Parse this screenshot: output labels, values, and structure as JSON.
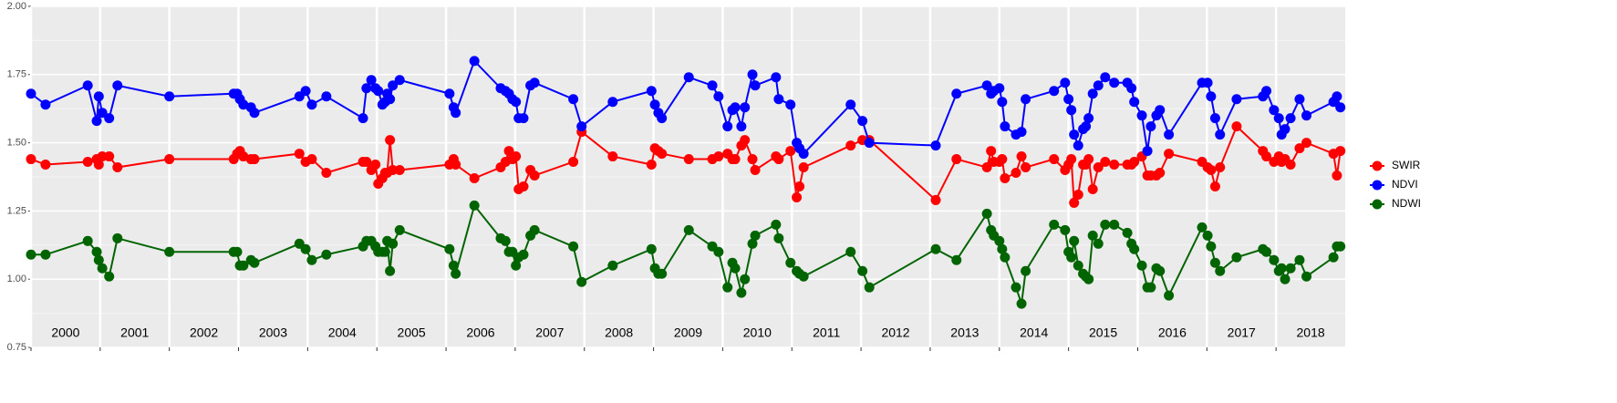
{
  "chart_data": {
    "type": "line",
    "x": [
      2000.0,
      2000.21,
      2000.82,
      2000.95,
      2000.98,
      2001.03,
      2001.13,
      2001.25,
      2002.0,
      2002.93,
      2002.98,
      2003.02,
      2003.07,
      2003.18,
      2003.23,
      2003.88,
      2003.97,
      2004.06,
      2004.27,
      2004.8,
      2004.85,
      2004.92,
      2004.98,
      2005.02,
      2005.08,
      2005.12,
      2005.15,
      2005.19,
      2005.23,
      2005.33,
      2006.05,
      2006.11,
      2006.14,
      2006.41,
      2006.79,
      2006.86,
      2006.91,
      2006.96,
      2007.01,
      2007.05,
      2007.12,
      2007.22,
      2007.28,
      2007.84,
      2007.96,
      2008.41,
      2008.97,
      2009.02,
      2009.07,
      2009.12,
      2009.51,
      2009.85,
      2009.94,
      2010.07,
      2010.14,
      2010.18,
      2010.27,
      2010.32,
      2010.43,
      2010.47,
      2010.77,
      2010.81,
      2010.98,
      2011.07,
      2011.11,
      2011.17,
      2011.85,
      2012.02,
      2012.12,
      2013.08,
      2013.38,
      2013.82,
      2013.88,
      2013.92,
      2014.0,
      2014.04,
      2014.08,
      2014.24,
      2014.32,
      2014.38,
      2014.79,
      2014.95,
      2015.0,
      2015.04,
      2015.08,
      2015.14,
      2015.21,
      2015.25,
      2015.29,
      2015.35,
      2015.43,
      2015.53,
      2015.66,
      2015.85,
      2015.91,
      2015.95,
      2016.06,
      2016.14,
      2016.19,
      2016.27,
      2016.32,
      2016.45,
      2016.93,
      2017.01,
      2017.06,
      2017.12,
      2017.19,
      2017.43,
      2017.81,
      2017.86,
      2017.97,
      2018.04,
      2018.08,
      2018.13,
      2018.21,
      2018.34,
      2018.44,
      2018.83,
      2018.88,
      2018.93
    ],
    "series": [
      {
        "name": "SWIR",
        "color": "#ff0000",
        "values": [
          1.44,
          1.42,
          1.43,
          1.44,
          1.42,
          1.45,
          1.45,
          1.41,
          1.44,
          1.44,
          1.46,
          1.47,
          1.45,
          1.44,
          1.44,
          1.46,
          1.43,
          1.44,
          1.39,
          1.43,
          1.43,
          1.4,
          1.42,
          1.35,
          1.37,
          1.39,
          1.39,
          1.51,
          1.4,
          1.4,
          1.42,
          1.44,
          1.42,
          1.37,
          1.41,
          1.43,
          1.47,
          1.44,
          1.45,
          1.33,
          1.34,
          1.4,
          1.38,
          1.43,
          1.54,
          1.45,
          1.42,
          1.48,
          1.47,
          1.46,
          1.44,
          1.44,
          1.45,
          1.46,
          1.44,
          1.44,
          1.49,
          1.51,
          1.44,
          1.4,
          1.45,
          1.44,
          1.47,
          1.3,
          1.34,
          1.41,
          1.49,
          1.51,
          1.51,
          1.29,
          1.44,
          1.41,
          1.47,
          1.43,
          1.43,
          1.44,
          1.37,
          1.39,
          1.45,
          1.41,
          1.44,
          1.4,
          1.42,
          1.44,
          1.28,
          1.31,
          1.42,
          1.42,
          1.44,
          1.33,
          1.41,
          1.43,
          1.42,
          1.42,
          1.42,
          1.43,
          1.45,
          1.38,
          1.38,
          1.38,
          1.39,
          1.46,
          1.43,
          1.41,
          1.4,
          1.34,
          1.41,
          1.56,
          1.47,
          1.45,
          1.43,
          1.45,
          1.43,
          1.44,
          1.42,
          1.48,
          1.5,
          1.46,
          1.38,
          1.47
        ]
      },
      {
        "name": "NDVI",
        "color": "#0000ff",
        "values": [
          1.68,
          1.64,
          1.71,
          1.58,
          1.67,
          1.61,
          1.59,
          1.71,
          1.67,
          1.68,
          1.68,
          1.66,
          1.64,
          1.63,
          1.61,
          1.67,
          1.69,
          1.64,
          1.67,
          1.59,
          1.7,
          1.73,
          1.7,
          1.69,
          1.64,
          1.65,
          1.68,
          1.66,
          1.71,
          1.73,
          1.68,
          1.63,
          1.61,
          1.8,
          1.7,
          1.69,
          1.68,
          1.66,
          1.65,
          1.59,
          1.59,
          1.71,
          1.72,
          1.66,
          1.56,
          1.65,
          1.69,
          1.64,
          1.61,
          1.59,
          1.74,
          1.71,
          1.67,
          1.56,
          1.62,
          1.63,
          1.56,
          1.63,
          1.75,
          1.71,
          1.74,
          1.66,
          1.64,
          1.5,
          1.48,
          1.46,
          1.64,
          1.58,
          1.5,
          1.49,
          1.68,
          1.71,
          1.68,
          1.69,
          1.7,
          1.65,
          1.56,
          1.53,
          1.54,
          1.66,
          1.69,
          1.72,
          1.66,
          1.62,
          1.53,
          1.49,
          1.55,
          1.56,
          1.59,
          1.68,
          1.71,
          1.74,
          1.72,
          1.72,
          1.7,
          1.65,
          1.6,
          1.47,
          1.56,
          1.6,
          1.62,
          1.53,
          1.72,
          1.72,
          1.67,
          1.59,
          1.53,
          1.66,
          1.67,
          1.69,
          1.62,
          1.59,
          1.53,
          1.55,
          1.59,
          1.66,
          1.6,
          1.65,
          1.67,
          1.63
        ]
      },
      {
        "name": "NDWI",
        "color": "#006400",
        "values": [
          1.09,
          1.09,
          1.14,
          1.1,
          1.07,
          1.04,
          1.01,
          1.15,
          1.1,
          1.1,
          1.1,
          1.05,
          1.05,
          1.07,
          1.06,
          1.13,
          1.11,
          1.07,
          1.09,
          1.12,
          1.14,
          1.14,
          1.12,
          1.1,
          1.1,
          1.1,
          1.14,
          1.03,
          1.13,
          1.18,
          1.11,
          1.05,
          1.02,
          1.27,
          1.15,
          1.14,
          1.1,
          1.1,
          1.05,
          1.08,
          1.09,
          1.16,
          1.18,
          1.12,
          0.99,
          1.05,
          1.11,
          1.04,
          1.02,
          1.02,
          1.18,
          1.12,
          1.1,
          0.97,
          1.06,
          1.04,
          0.95,
          1.0,
          1.13,
          1.16,
          1.2,
          1.15,
          1.06,
          1.03,
          1.02,
          1.01,
          1.1,
          1.03,
          0.97,
          1.11,
          1.07,
          1.24,
          1.18,
          1.16,
          1.14,
          1.11,
          1.08,
          0.97,
          0.91,
          1.03,
          1.2,
          1.18,
          1.1,
          1.08,
          1.14,
          1.05,
          1.02,
          1.01,
          1.0,
          1.16,
          1.13,
          1.2,
          1.2,
          1.17,
          1.13,
          1.11,
          1.05,
          0.97,
          0.97,
          1.04,
          1.03,
          0.94,
          1.19,
          1.16,
          1.12,
          1.06,
          1.03,
          1.08,
          1.11,
          1.1,
          1.07,
          1.03,
          1.04,
          1.0,
          1.04,
          1.07,
          1.01,
          1.08,
          1.12,
          1.12
        ]
      }
    ],
    "xlim": [
      2000,
      2019
    ],
    "xticks": [
      2000,
      2001,
      2002,
      2003,
      2004,
      2005,
      2006,
      2007,
      2008,
      2009,
      2010,
      2011,
      2012,
      2013,
      2014,
      2015,
      2016,
      2017,
      2018
    ],
    "ylim": [
      0.75,
      2.0
    ],
    "yticks": [
      0.75,
      {
        "value": 1.0,
        "label": "1.00"
      },
      1.25,
      {
        "value": 1.5,
        "label": "1.50"
      },
      1.75,
      {
        "value": 2.0,
        "label": "2.00"
      }
    ],
    "grid": true,
    "legend": "right"
  }
}
